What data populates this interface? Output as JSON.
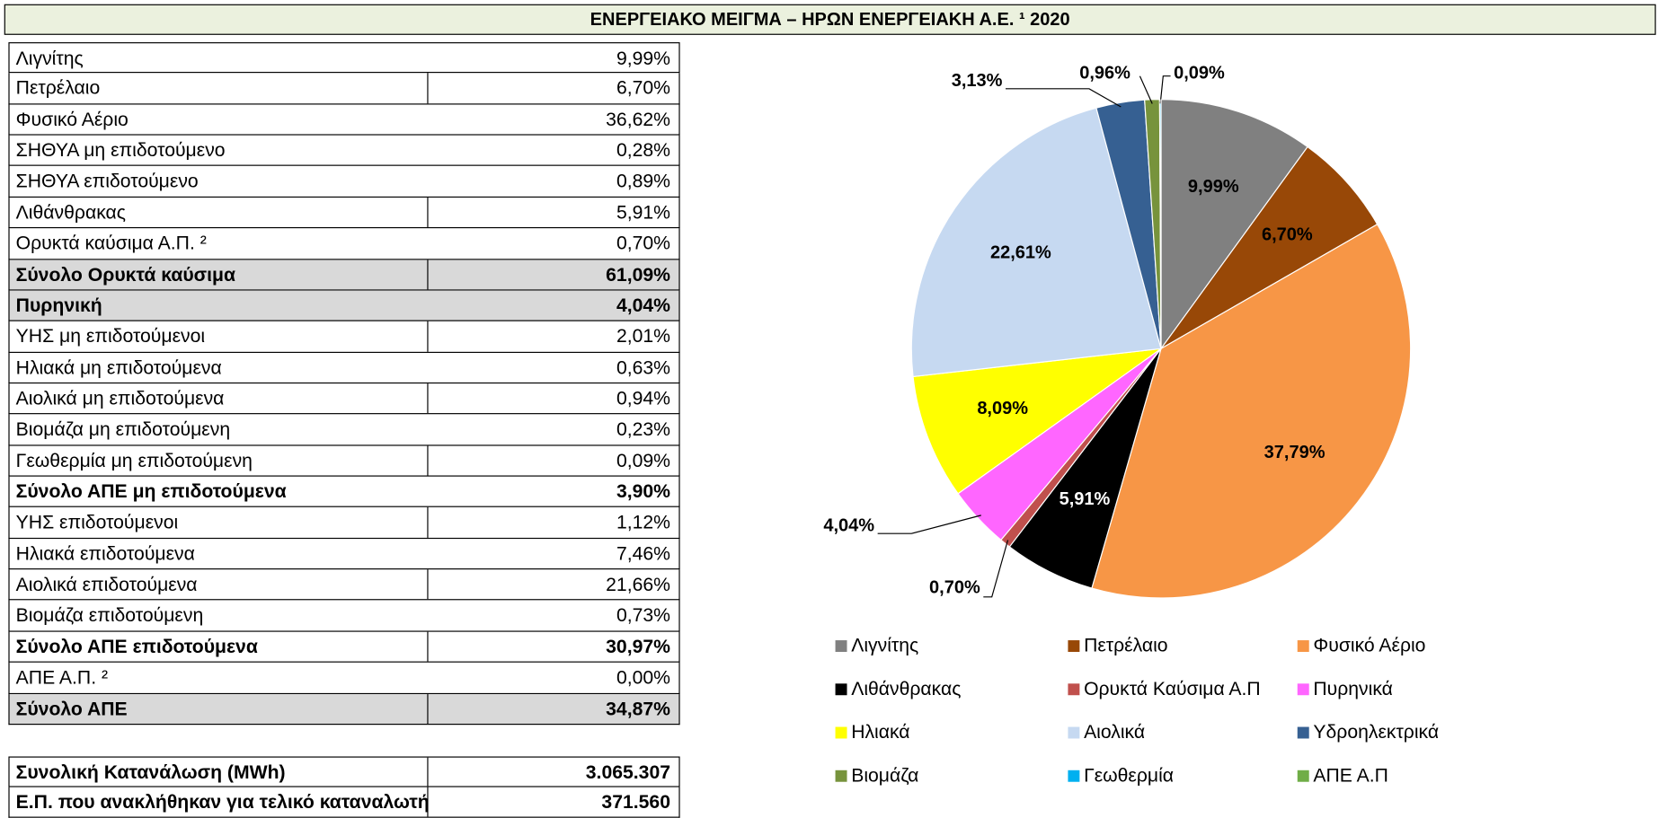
{
  "title": "ΕΝΕΡΓΕΙΑΚΟ ΜΕΙΓΜΑ – ΗΡΩΝ ΕΝΕΡΓΕΙΑΚΗ Α.Ε. ¹ 2020",
  "table": {
    "rows": [
      [
        "Λιγνίτης",
        "9,99%"
      ],
      [
        "Πετρέλαιο",
        "6,70%"
      ],
      [
        "Φυσικό Αέριο",
        "36,62%"
      ],
      [
        "ΣΗΘΥΑ μη επιδοτούμενο",
        "0,28%"
      ],
      [
        "ΣΗΘΥΑ επιδοτούμενο",
        "0,89%"
      ],
      [
        "Λιθάνθρακας",
        "5,91%"
      ],
      [
        "Ορυκτά καύσιμα Α.Π. ²",
        "0,70%"
      ],
      [
        "Σύνολο Ορυκτά καύσιμα",
        "61,09%"
      ],
      [
        "Πυρηνική",
        "4,04%"
      ],
      [
        "ΥΗΣ μη επιδοτούμενοι",
        "2,01%"
      ],
      [
        "Ηλιακά μη επιδοτούμενα",
        "0,63%"
      ],
      [
        "Αιολικά μη επιδοτούμενα",
        "0,94%"
      ],
      [
        "Βιομάζα μη επιδοτούμενη",
        "0,23%"
      ],
      [
        "Γεωθερμία μη επιδοτούμενη",
        "0,09%"
      ],
      [
        "Σύνολο ΑΠΕ μη επιδοτούμενα",
        "3,90%"
      ],
      [
        "ΥΗΣ επιδοτούμενοι",
        "1,12%"
      ],
      [
        "Ηλιακά επιδοτούμενα",
        "7,46%"
      ],
      [
        "Αιολικά επιδοτούμενα",
        "21,66%"
      ],
      [
        "Βιομάζα επιδοτούμενη",
        "0,73%"
      ],
      [
        "Σύνολο ΑΠΕ επιδοτούμενα",
        "30,97%"
      ],
      [
        "ΑΠΕ Α.Π. ²",
        "0,00%"
      ],
      [
        "Σύνολο ΑΠΕ",
        "34,87%"
      ]
    ]
  },
  "summary": {
    "rows": [
      [
        "Συνολική Κατανάλωση (MWh)",
        "3.065.307"
      ],
      [
        "Ε.Π. που ανακλήθηκαν για τελικό καταναλωτή",
        "371.560"
      ]
    ]
  },
  "chart_data": {
    "type": "pie",
    "categories": [
      "Λιγνίτης",
      "Πετρέλαιο",
      "Φυσικό Αέριο",
      "Λιθάνθρακας",
      "Ορυκτά Καύσιμα Α.Π",
      "Πυρηνικά",
      "Ηλιακά",
      "Αιολικά",
      "Υδροηλεκτρικά",
      "Βιομάζα",
      "Γεωθερμία",
      "ΑΠΕ Α.Π"
    ],
    "values": [
      9.99,
      6.7,
      37.79,
      5.91,
      0.7,
      4.04,
      8.09,
      22.61,
      3.13,
      0.96,
      0.09,
      0
    ],
    "value_labels": [
      "9,99%",
      "6,70%",
      "37,79%",
      "5,91%",
      "0,70%",
      "4,04%",
      "8,09%",
      "22,61%",
      "3,13%",
      "0,96%",
      "0,09%",
      null
    ],
    "colors": [
      "#808080",
      "#984807",
      "#f79646",
      "#000000",
      "#c0504d",
      "#ff66ff",
      "#ffff00",
      "#c6d9f1",
      "#366092",
      "#77933c",
      "#00b0f0",
      "#70ad47"
    ]
  }
}
